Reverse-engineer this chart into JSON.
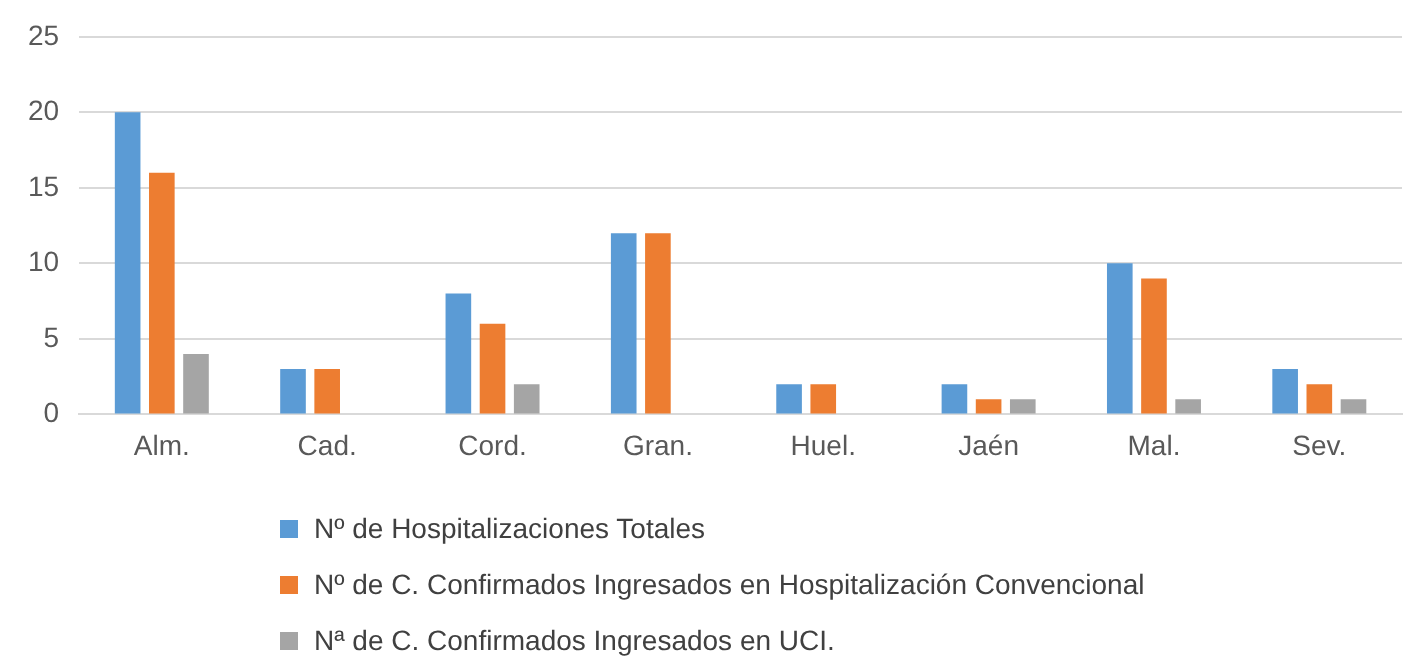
{
  "chart_data": {
    "type": "bar",
    "categories": [
      "Alm.",
      "Cad.",
      "Cord.",
      "Gran.",
      "Huel.",
      "Jaén",
      "Mal.",
      "Sev."
    ],
    "series": [
      {
        "name": "Nº de Hospitalizaciones Totales",
        "color": "#5b9bd5",
        "values": [
          20,
          3,
          8,
          12,
          2,
          2,
          10,
          3
        ]
      },
      {
        "name": "Nº de C. Confirmados Ingresados en Hospitalización Convencional",
        "color": "#ed7d31",
        "values": [
          16,
          3,
          6,
          12,
          2,
          1,
          9,
          2
        ]
      },
      {
        "name": "Nª de C. Confirmados Ingresados en UCI.",
        "color": "#a5a5a5",
        "values": [
          4,
          0,
          2,
          0,
          0,
          1,
          1,
          1
        ]
      }
    ],
    "ylim": [
      0,
      25
    ],
    "yticks": [
      0,
      5,
      10,
      15,
      20,
      25
    ],
    "grid": "y",
    "legend": "bottom"
  }
}
